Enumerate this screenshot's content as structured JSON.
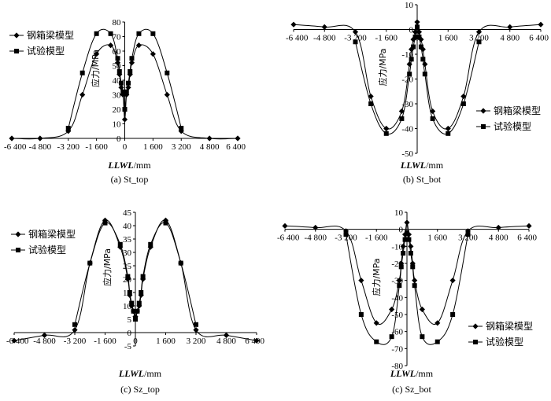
{
  "chart_data": [
    {
      "type": "line",
      "caption": "(a) St_top",
      "xlabel_italic": "LLWL",
      "xlabel_unit": "/mm",
      "ylabel": "应力/MPa",
      "xlim": [
        -6400,
        6400
      ],
      "ylim": [
        0,
        80
      ],
      "x_ticks": [
        -6400,
        -4800,
        -3200,
        -1600,
        0,
        1600,
        3200,
        4800,
        6400
      ],
      "x_tick_labels": [
        "-6 400",
        "-4 800",
        "-3 200",
        "-1 600",
        "0",
        "1 600",
        "3 200",
        "4 800",
        "6 400"
      ],
      "y_ticks": [
        0,
        10,
        20,
        30,
        40,
        50,
        60,
        70,
        80
      ],
      "y_tick_labels": [
        "0",
        "10",
        "20",
        "30",
        "40",
        "50",
        "60",
        "70",
        "80"
      ],
      "legend": [
        "钢箱梁模型",
        "试验模型"
      ],
      "series": [
        {
          "name": "钢箱梁模型",
          "marker": "diamond",
          "x": [
            -6400,
            -4800,
            -3200,
            -2400,
            -1600,
            -800,
            -400,
            -300,
            -200,
            -100,
            0,
            100,
            200,
            300,
            400,
            800,
            1600,
            2400,
            3200,
            4800,
            6400
          ],
          "y": [
            0,
            0,
            5,
            30,
            58,
            64,
            52,
            44,
            35,
            30,
            13,
            30,
            35,
            44,
            52,
            64,
            58,
            30,
            5,
            0,
            0
          ]
        },
        {
          "name": "试验模型",
          "marker": "square",
          "x": [
            -3200,
            -2400,
            -1600,
            -800,
            -400,
            -300,
            -200,
            -100,
            0,
            100,
            200,
            300,
            400,
            800,
            1600,
            2400,
            3200
          ],
          "y": [
            7,
            45,
            72,
            72,
            55,
            46,
            38,
            32,
            20,
            32,
            38,
            46,
            55,
            72,
            72,
            45,
            7
          ]
        }
      ]
    },
    {
      "type": "line",
      "caption": "(b) St_bot",
      "xlabel_italic": "LLWL",
      "xlabel_unit": "/mm",
      "ylabel": "应力/MPa",
      "xlim": [
        -6400,
        6400
      ],
      "ylim": [
        -50,
        10
      ],
      "x_ticks": [
        -6400,
        -4800,
        -3200,
        -1600,
        0,
        1600,
        3200,
        4800,
        6400
      ],
      "x_tick_labels": [
        "-6 400",
        "-4 800",
        "-3 200",
        "-1 600",
        "0",
        "1 600",
        "3 200",
        "4 800",
        "6 400"
      ],
      "y_ticks": [
        -50,
        -40,
        -30,
        -20,
        -10,
        0,
        10
      ],
      "y_tick_labels": [
        "-50",
        "-40",
        "-30",
        "-20",
        "-10",
        "0",
        "10"
      ],
      "legend": [
        "钢箱梁模型",
        "试验模型"
      ],
      "series": [
        {
          "name": "钢箱梁模型",
          "marker": "diamond",
          "x": [
            -6400,
            -4800,
            -3200,
            -2400,
            -1600,
            -800,
            -400,
            -300,
            -200,
            -100,
            0,
            100,
            200,
            300,
            400,
            800,
            1600,
            2400,
            3200,
            4800,
            6400
          ],
          "y": [
            2,
            1,
            -1,
            -27,
            -40,
            -33,
            -14,
            -8,
            -4,
            -1,
            3,
            -1,
            -4,
            -8,
            -14,
            -33,
            -40,
            -27,
            -1,
            1,
            2
          ]
        },
        {
          "name": "试验模型",
          "marker": "square",
          "x": [
            -3200,
            -2400,
            -1600,
            -800,
            -400,
            -300,
            -200,
            -100,
            0,
            100,
            200,
            300,
            400,
            800,
            1600,
            2400,
            3200
          ],
          "y": [
            -5,
            -30,
            -42,
            -36,
            -18,
            -12,
            -7,
            -3,
            1,
            -3,
            -7,
            -12,
            -18,
            -36,
            -42,
            -30,
            -5
          ]
        }
      ]
    },
    {
      "type": "line",
      "caption": "(c) Sz_top",
      "xlabel_italic": "LLWL",
      "xlabel_unit": "/mm",
      "ylabel": "应力/MPa",
      "xlim": [
        -6400,
        6400
      ],
      "ylim": [
        -5,
        45
      ],
      "x_ticks": [
        -6400,
        -4800,
        -3200,
        -1600,
        0,
        1600,
        3200,
        4800,
        6400
      ],
      "x_tick_labels": [
        "-6 400",
        "-4 800",
        "-3 200",
        "-1 600",
        "0",
        "1 600",
        "3 200",
        "4 800",
        "6 400"
      ],
      "y_ticks": [
        -5,
        0,
        5,
        10,
        15,
        20,
        25,
        30,
        35,
        40,
        45
      ],
      "y_tick_labels": [
        "-5",
        "0",
        "5",
        "10",
        "15",
        "20",
        "25",
        "30",
        "35",
        "40",
        "45"
      ],
      "legend": [
        "钢箱梁模型",
        "试验模型"
      ],
      "series": [
        {
          "name": "钢箱梁模型",
          "marker": "diamond",
          "x": [
            -6400,
            -4800,
            -3200,
            -2400,
            -1600,
            -800,
            -400,
            -300,
            -200,
            -100,
            0,
            100,
            200,
            300,
            400,
            800,
            1600,
            2400,
            3200,
            4800,
            6400
          ],
          "y": [
            -3,
            -1,
            1,
            26,
            42,
            32,
            20,
            14,
            10,
            8,
            6,
            8,
            10,
            14,
            20,
            32,
            42,
            26,
            1,
            -1,
            -3
          ]
        },
        {
          "name": "试验模型",
          "marker": "square",
          "x": [
            -3200,
            -2400,
            -1600,
            -800,
            -400,
            -300,
            -200,
            -100,
            0,
            100,
            200,
            300,
            400,
            800,
            1600,
            2400,
            3200
          ],
          "y": [
            3,
            26,
            41,
            33,
            21,
            15,
            11,
            8,
            5,
            8,
            11,
            15,
            21,
            33,
            41,
            26,
            3
          ]
        }
      ]
    },
    {
      "type": "line",
      "caption": "(c) Sz_bot",
      "xlabel_italic": "LLWL",
      "xlabel_unit": "/mm",
      "ylabel": "应力/MPa",
      "xlim": [
        -6400,
        6400
      ],
      "ylim": [
        -80,
        10
      ],
      "x_ticks": [
        -6400,
        -4800,
        -3200,
        -1600,
        0,
        1600,
        3200,
        4800,
        6400
      ],
      "x_tick_labels": [
        "-6 400",
        "-4 800",
        "-3 200",
        "-1 600",
        "0",
        "1 600",
        "3 200",
        "4 800",
        "6 400"
      ],
      "y_ticks": [
        -80,
        -70,
        -60,
        -50,
        -40,
        -30,
        -20,
        -10,
        0,
        10
      ],
      "y_tick_labels": [
        "-80",
        "-70",
        "-60",
        "-50",
        "-40",
        "-30",
        "-20",
        "-10",
        "0",
        "10"
      ],
      "legend": [
        "钢箱梁模型",
        "试验模型"
      ],
      "series": [
        {
          "name": "钢箱梁模型",
          "marker": "diamond",
          "x": [
            -6400,
            -4800,
            -3200,
            -2400,
            -1600,
            -800,
            -400,
            -300,
            -200,
            -100,
            0,
            100,
            200,
            300,
            400,
            800,
            1600,
            2400,
            3200,
            4800,
            6400
          ],
          "y": [
            2,
            1,
            -1,
            -30,
            -55,
            -47,
            -30,
            -20,
            -10,
            -3,
            4,
            -3,
            -10,
            -20,
            -30,
            -47,
            -55,
            -30,
            -1,
            1,
            2
          ]
        },
        {
          "name": "试验模型",
          "marker": "square",
          "x": [
            -3200,
            -2400,
            -1600,
            -800,
            -400,
            -300,
            -200,
            -100,
            0,
            100,
            200,
            300,
            400,
            800,
            1600,
            2400,
            3200
          ],
          "y": [
            -3,
            -50,
            -66,
            -63,
            -33,
            -22,
            -14,
            -6,
            -2,
            -6,
            -14,
            -22,
            -33,
            -63,
            -66,
            -50,
            -3
          ]
        }
      ]
    }
  ]
}
